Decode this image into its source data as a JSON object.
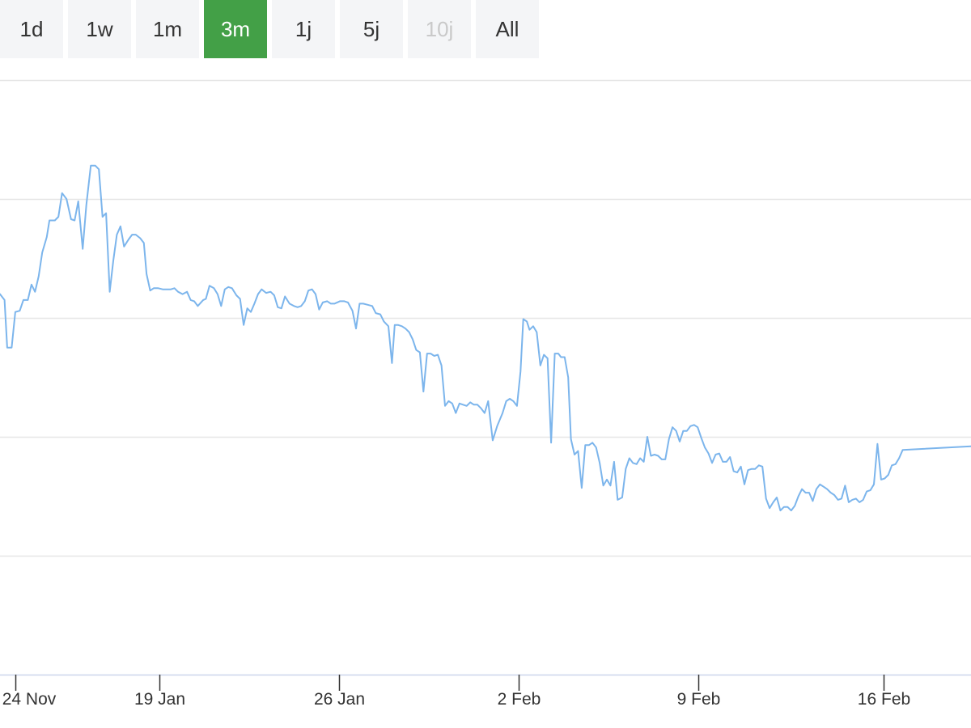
{
  "range_selector": {
    "buttons": [
      {
        "label": "1d",
        "state": "normal"
      },
      {
        "label": "1w",
        "state": "normal"
      },
      {
        "label": "1m",
        "state": "normal"
      },
      {
        "label": "3m",
        "state": "active"
      },
      {
        "label": "1j",
        "state": "normal"
      },
      {
        "label": "5j",
        "state": "normal"
      },
      {
        "label": "10j",
        "state": "disabled"
      },
      {
        "label": "All",
        "state": "normal"
      }
    ]
  },
  "colors": {
    "line": "#7cb5ec",
    "active_button": "#43a047",
    "button_bg": "#f4f5f7",
    "gridline": "#e6e6e6"
  },
  "chart_data": {
    "type": "line",
    "title": "",
    "xlabel": "",
    "ylabel": "",
    "y_tick_labels_shown": false,
    "ylim": [
      0,
      5
    ],
    "grid": true,
    "gridline_values": [
      0,
      1,
      2,
      3,
      4,
      5
    ],
    "x_ticks": [
      {
        "label": "24 Nov",
        "x": 0
      },
      {
        "label": "19 Jan",
        "x": 8
      },
      {
        "label": "26 Jan",
        "x": 18
      },
      {
        "label": "2 Feb",
        "x": 28
      },
      {
        "label": "9 Feb",
        "x": 38
      },
      {
        "label": "16 Feb",
        "x": 48.3
      }
    ],
    "xlim": [
      -0.85,
      53.15
    ],
    "series": [
      {
        "name": "",
        "points": [
          [
            -0.85,
            3.2
          ],
          [
            -0.6,
            3.15
          ],
          [
            -0.45,
            2.75
          ],
          [
            -0.2,
            2.75
          ],
          [
            0,
            3.05
          ],
          [
            0.25,
            3.06
          ],
          [
            0.45,
            3.15
          ],
          [
            0.7,
            3.15
          ],
          [
            0.9,
            3.28
          ],
          [
            1.1,
            3.22
          ],
          [
            1.3,
            3.35
          ],
          [
            1.5,
            3.55
          ],
          [
            1.75,
            3.68
          ],
          [
            1.9,
            3.82
          ],
          [
            2.2,
            3.82
          ],
          [
            2.4,
            3.85
          ],
          [
            2.6,
            4.05
          ],
          [
            2.85,
            4.0
          ],
          [
            3.1,
            3.83
          ],
          [
            3.3,
            3.82
          ],
          [
            3.5,
            3.98
          ],
          [
            3.75,
            3.58
          ],
          [
            3.95,
            3.95
          ],
          [
            4.2,
            4.28
          ],
          [
            4.45,
            4.28
          ],
          [
            4.65,
            4.25
          ],
          [
            4.85,
            3.85
          ],
          [
            5.05,
            3.88
          ],
          [
            5.25,
            3.22
          ],
          [
            5.45,
            3.48
          ],
          [
            5.65,
            3.7
          ],
          [
            5.85,
            3.77
          ],
          [
            6.05,
            3.6
          ],
          [
            6.3,
            3.66
          ],
          [
            6.5,
            3.7
          ],
          [
            6.7,
            3.7
          ],
          [
            6.95,
            3.67
          ],
          [
            7.15,
            3.63
          ],
          [
            7.3,
            3.37
          ],
          [
            7.5,
            3.23
          ],
          [
            7.7,
            3.25
          ],
          [
            7.95,
            3.25
          ],
          [
            8.2,
            3.24
          ],
          [
            8.4,
            3.24
          ],
          [
            8.65,
            3.24
          ],
          [
            8.85,
            3.25
          ],
          [
            9.05,
            3.22
          ],
          [
            9.3,
            3.2
          ],
          [
            9.55,
            3.22
          ],
          [
            9.75,
            3.15
          ],
          [
            9.95,
            3.14
          ],
          [
            10.15,
            3.1
          ],
          [
            10.45,
            3.15
          ],
          [
            10.6,
            3.16
          ],
          [
            10.8,
            3.27
          ],
          [
            11.05,
            3.25
          ],
          [
            11.25,
            3.2
          ],
          [
            11.45,
            3.1
          ],
          [
            11.65,
            3.24
          ],
          [
            11.85,
            3.26
          ],
          [
            12.05,
            3.25
          ],
          [
            12.3,
            3.19
          ],
          [
            12.5,
            3.16
          ],
          [
            12.7,
            2.94
          ],
          [
            12.9,
            3.08
          ],
          [
            13.1,
            3.05
          ],
          [
            13.3,
            3.12
          ],
          [
            13.5,
            3.2
          ],
          [
            13.7,
            3.24
          ],
          [
            13.95,
            3.21
          ],
          [
            14.2,
            3.22
          ],
          [
            14.4,
            3.19
          ],
          [
            14.6,
            3.09
          ],
          [
            14.8,
            3.08
          ],
          [
            15.0,
            3.18
          ],
          [
            15.25,
            3.12
          ],
          [
            15.5,
            3.1
          ],
          [
            15.7,
            3.09
          ],
          [
            15.9,
            3.1
          ],
          [
            16.1,
            3.14
          ],
          [
            16.3,
            3.23
          ],
          [
            16.5,
            3.24
          ],
          [
            16.7,
            3.2
          ],
          [
            16.9,
            3.07
          ],
          [
            17.1,
            3.13
          ],
          [
            17.35,
            3.14
          ],
          [
            17.55,
            3.12
          ],
          [
            17.75,
            3.12
          ],
          [
            18.05,
            3.14
          ],
          [
            18.3,
            3.14
          ],
          [
            18.5,
            3.13
          ],
          [
            18.75,
            3.06
          ],
          [
            18.95,
            2.91
          ],
          [
            19.15,
            3.12
          ],
          [
            19.35,
            3.12
          ],
          [
            19.6,
            3.11
          ],
          [
            19.85,
            3.1
          ],
          [
            20.05,
            3.04
          ],
          [
            20.3,
            3.03
          ],
          [
            20.5,
            2.97
          ],
          [
            20.75,
            2.93
          ],
          [
            20.95,
            2.62
          ],
          [
            21.1,
            2.94
          ],
          [
            21.3,
            2.94
          ],
          [
            21.5,
            2.93
          ],
          [
            21.7,
            2.91
          ],
          [
            21.9,
            2.88
          ],
          [
            22.1,
            2.82
          ],
          [
            22.3,
            2.73
          ],
          [
            22.5,
            2.71
          ],
          [
            22.7,
            2.38
          ],
          [
            22.9,
            2.7
          ],
          [
            23.1,
            2.7
          ],
          [
            23.3,
            2.68
          ],
          [
            23.5,
            2.69
          ],
          [
            23.7,
            2.6
          ],
          [
            23.9,
            2.26
          ],
          [
            24.1,
            2.3
          ],
          [
            24.3,
            2.28
          ],
          [
            24.5,
            2.2
          ],
          [
            24.7,
            2.28
          ],
          [
            24.9,
            2.27
          ],
          [
            25.1,
            2.26
          ],
          [
            25.3,
            2.29
          ],
          [
            25.5,
            2.27
          ],
          [
            25.7,
            2.27
          ],
          [
            25.9,
            2.24
          ],
          [
            26.1,
            2.2
          ],
          [
            26.3,
            2.3
          ],
          [
            26.55,
            1.97
          ],
          [
            26.8,
            2.09
          ],
          [
            27.1,
            2.2
          ],
          [
            27.3,
            2.3
          ],
          [
            27.5,
            2.32
          ],
          [
            27.7,
            2.3
          ],
          [
            27.9,
            2.26
          ],
          [
            28.1,
            2.55
          ],
          [
            28.25,
            2.99
          ],
          [
            28.45,
            2.97
          ],
          [
            28.6,
            2.9
          ],
          [
            28.8,
            2.93
          ],
          [
            29.0,
            2.88
          ],
          [
            29.2,
            2.6
          ],
          [
            29.4,
            2.69
          ],
          [
            29.6,
            2.66
          ],
          [
            29.8,
            1.95
          ],
          [
            30.0,
            2.7
          ],
          [
            30.2,
            2.7
          ],
          [
            30.35,
            2.67
          ],
          [
            30.55,
            2.67
          ],
          [
            30.75,
            2.5
          ],
          [
            30.9,
            1.98
          ],
          [
            31.1,
            1.85
          ],
          [
            31.3,
            1.88
          ],
          [
            31.5,
            1.57
          ],
          [
            31.7,
            1.93
          ],
          [
            31.9,
            1.93
          ],
          [
            32.1,
            1.95
          ],
          [
            32.3,
            1.91
          ],
          [
            32.5,
            1.78
          ],
          [
            32.7,
            1.59
          ],
          [
            32.9,
            1.64
          ],
          [
            33.1,
            1.59
          ],
          [
            33.3,
            1.79
          ],
          [
            33.5,
            1.47
          ],
          [
            33.75,
            1.49
          ],
          [
            33.95,
            1.73
          ],
          [
            34.15,
            1.82
          ],
          [
            34.35,
            1.78
          ],
          [
            34.55,
            1.77
          ],
          [
            34.75,
            1.82
          ],
          [
            34.95,
            1.79
          ],
          [
            35.15,
            2.0
          ],
          [
            35.35,
            1.84
          ],
          [
            35.55,
            1.85
          ],
          [
            35.75,
            1.84
          ],
          [
            35.95,
            1.81
          ],
          [
            36.15,
            1.81
          ],
          [
            36.35,
            1.98
          ],
          [
            36.55,
            2.08
          ],
          [
            36.75,
            2.05
          ],
          [
            36.95,
            1.96
          ],
          [
            37.15,
            2.05
          ],
          [
            37.35,
            2.05
          ],
          [
            37.55,
            2.09
          ],
          [
            37.75,
            2.1
          ],
          [
            37.95,
            2.08
          ],
          [
            38.15,
            1.99
          ],
          [
            38.35,
            1.91
          ],
          [
            38.55,
            1.86
          ],
          [
            38.75,
            1.78
          ],
          [
            38.95,
            1.85
          ],
          [
            39.15,
            1.86
          ],
          [
            39.35,
            1.79
          ],
          [
            39.55,
            1.79
          ],
          [
            39.75,
            1.83
          ],
          [
            39.95,
            1.71
          ],
          [
            40.15,
            1.7
          ],
          [
            40.35,
            1.75
          ],
          [
            40.55,
            1.6
          ],
          [
            40.75,
            1.72
          ],
          [
            40.95,
            1.73
          ],
          [
            41.15,
            1.73
          ],
          [
            41.35,
            1.76
          ],
          [
            41.55,
            1.75
          ],
          [
            41.75,
            1.48
          ],
          [
            41.95,
            1.4
          ],
          [
            42.15,
            1.45
          ],
          [
            42.35,
            1.49
          ],
          [
            42.55,
            1.38
          ],
          [
            42.75,
            1.41
          ],
          [
            42.95,
            1.41
          ],
          [
            43.15,
            1.38
          ],
          [
            43.35,
            1.42
          ],
          [
            43.55,
            1.5
          ],
          [
            43.75,
            1.56
          ],
          [
            43.95,
            1.53
          ],
          [
            44.15,
            1.53
          ],
          [
            44.35,
            1.46
          ],
          [
            44.55,
            1.56
          ],
          [
            44.75,
            1.6
          ],
          [
            44.95,
            1.58
          ],
          [
            45.15,
            1.56
          ],
          [
            45.35,
            1.53
          ],
          [
            45.55,
            1.51
          ],
          [
            45.75,
            1.47
          ],
          [
            45.95,
            1.48
          ],
          [
            46.15,
            1.59
          ],
          [
            46.35,
            1.45
          ],
          [
            46.55,
            1.47
          ],
          [
            46.75,
            1.48
          ],
          [
            46.95,
            1.45
          ],
          [
            47.15,
            1.47
          ],
          [
            47.35,
            1.54
          ],
          [
            47.55,
            1.55
          ],
          [
            47.75,
            1.6
          ],
          [
            47.95,
            1.94
          ],
          [
            48.15,
            1.64
          ],
          [
            48.35,
            1.65
          ],
          [
            48.55,
            1.68
          ],
          [
            48.75,
            1.76
          ],
          [
            48.95,
            1.77
          ],
          [
            49.15,
            1.82
          ],
          [
            49.35,
            1.89
          ],
          [
            53.15,
            1.92
          ]
        ]
      }
    ]
  }
}
